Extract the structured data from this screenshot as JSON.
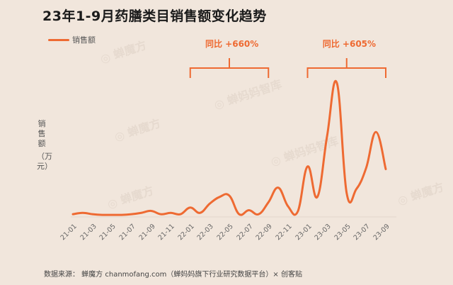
{
  "title": "23年1-9月药膳类目销售额变化趋势",
  "legend": {
    "label": "销售额",
    "color": "#ee6a32"
  },
  "y_axis": {
    "label": "销售额",
    "unit": "（万元）"
  },
  "annotations": [
    {
      "label": "同比 +660%"
    },
    {
      "label": "同比 +605%"
    }
  ],
  "source": "数据来源： 蝉魔方 chanmofang.com（蝉妈妈旗下行业研究数据平台）× 创客贴",
  "watermarks": [
    "蝉魔方",
    "蝉妈妈智库",
    "蝉魔方",
    "蝉妈妈智库",
    "蝉魔方",
    "蝉魔方"
  ],
  "chart_data": {
    "type": "line",
    "title": "23年1-9月药膳类目销售额变化趋势",
    "xlabel": "",
    "ylabel": "销售额（万元）",
    "grid": false,
    "legend_position": "top-left",
    "categories": [
      "21-01",
      "21-02",
      "21-03",
      "21-04",
      "21-05",
      "21-06",
      "21-07",
      "21-08",
      "21-09",
      "21-10",
      "21-11",
      "21-12",
      "22-01",
      "22-02",
      "22-03",
      "22-04",
      "22-05",
      "22-06",
      "22-07",
      "22-08",
      "22-09",
      "22-10",
      "22-11",
      "22-12",
      "23-01",
      "23-02",
      "23-03",
      "23-04",
      "23-05",
      "23-06",
      "23-07",
      "23-08",
      "23-09"
    ],
    "tick_labels": [
      "21-01",
      "21-03",
      "21-05",
      "21-07",
      "21-09",
      "21-11",
      "22-01",
      "22-03",
      "22-05",
      "22-07",
      "22-09",
      "22-11",
      "23-01",
      "23-03",
      "23-05",
      "23-07",
      "23-09"
    ],
    "series": [
      {
        "name": "销售额",
        "values": [
          1,
          2,
          1,
          0.5,
          0.5,
          0.5,
          1,
          2,
          3.5,
          1,
          2,
          1,
          6,
          2,
          9,
          14,
          15,
          1,
          4,
          1,
          10,
          21,
          7,
          3,
          37,
          14,
          60,
          100,
          17,
          20,
          36,
          63,
          35
        ]
      }
    ],
    "annotations": [
      {
        "text": "同比 +660%",
        "range": [
          "22-01",
          "22-09"
        ]
      },
      {
        "text": "同比 +605%",
        "range": [
          "23-01",
          "23-09"
        ]
      }
    ]
  }
}
